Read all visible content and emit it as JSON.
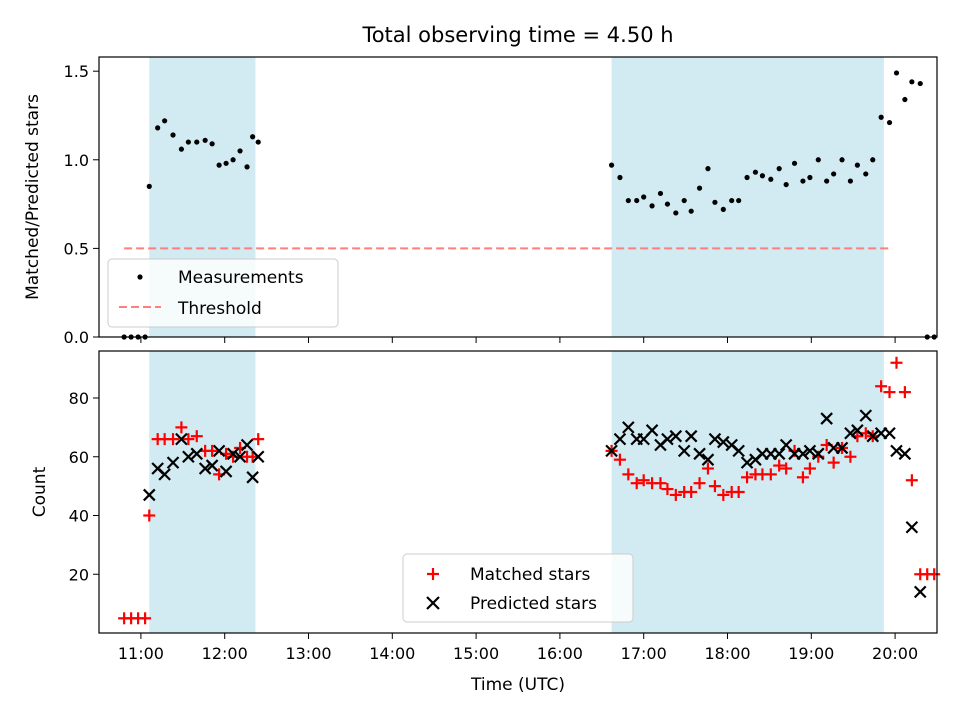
{
  "figure": {
    "title": "Total observing time = 4.50 h"
  },
  "colors": {
    "shade": "#add8e6",
    "measure": "#000000",
    "threshold": "#ff7f7f",
    "matched": "#ff0000",
    "predicted": "#000000"
  },
  "chart_data": [
    {
      "type": "scatter",
      "ylabel": "Matched/Predicted stars",
      "ylim": [
        0,
        1.58
      ],
      "yticks": [
        0.0,
        0.5,
        1.0,
        1.5
      ],
      "ytick_labels": [
        "0.0",
        "0.5",
        "1.0",
        "1.5"
      ],
      "xlim": [
        "10:30",
        "20:30"
      ],
      "shaded_intervals": [
        [
          "11:06",
          "12:22"
        ],
        [
          "16:37",
          "19:52"
        ]
      ],
      "legend_position": "lower-left",
      "threshold": {
        "name": "Threshold",
        "y": 0.5,
        "x_range": [
          "10:48",
          "19:58"
        ],
        "style": "dashed"
      },
      "series": [
        {
          "name": "Measurements",
          "points": [
            [
              "10:48",
              0.0
            ],
            [
              "10:53",
              0.0
            ],
            [
              "10:58",
              0.0
            ],
            [
              "11:03",
              0.0
            ],
            [
              "11:06",
              0.85
            ],
            [
              "11:12",
              1.18
            ],
            [
              "11:17",
              1.22
            ],
            [
              "11:23",
              1.14
            ],
            [
              "11:29",
              1.06
            ],
            [
              "11:34",
              1.1
            ],
            [
              "11:40",
              1.1
            ],
            [
              "11:46",
              1.11
            ],
            [
              "11:51",
              1.09
            ],
            [
              "11:56",
              0.97
            ],
            [
              "12:01",
              0.98
            ],
            [
              "12:06",
              1.0
            ],
            [
              "12:11",
              1.05
            ],
            [
              "12:16",
              0.96
            ],
            [
              "12:20",
              1.13
            ],
            [
              "12:24",
              1.1
            ],
            [
              "16:37",
              0.97
            ],
            [
              "16:43",
              0.9
            ],
            [
              "16:49",
              0.77
            ],
            [
              "16:55",
              0.77
            ],
            [
              "17:00",
              0.79
            ],
            [
              "17:06",
              0.74
            ],
            [
              "17:12",
              0.81
            ],
            [
              "17:17",
              0.75
            ],
            [
              "17:23",
              0.7
            ],
            [
              "17:29",
              0.77
            ],
            [
              "17:34",
              0.71
            ],
            [
              "17:40",
              0.84
            ],
            [
              "17:46",
              0.95
            ],
            [
              "17:51",
              0.76
            ],
            [
              "17:57",
              0.72
            ],
            [
              "18:03",
              0.77
            ],
            [
              "18:08",
              0.77
            ],
            [
              "18:14",
              0.9
            ],
            [
              "18:20",
              0.93
            ],
            [
              "18:25",
              0.91
            ],
            [
              "18:31",
              0.89
            ],
            [
              "18:37",
              0.95
            ],
            [
              "18:42",
              0.86
            ],
            [
              "18:48",
              0.98
            ],
            [
              "18:54",
              0.88
            ],
            [
              "18:59",
              0.9
            ],
            [
              "19:05",
              1.0
            ],
            [
              "19:11",
              0.88
            ],
            [
              "19:16",
              0.92
            ],
            [
              "19:22",
              1.0
            ],
            [
              "19:28",
              0.88
            ],
            [
              "19:33",
              0.97
            ],
            [
              "19:39",
              0.92
            ],
            [
              "19:44",
              1.0
            ],
            [
              "19:50",
              1.24
            ],
            [
              "19:56",
              1.21
            ],
            [
              "20:01",
              1.49
            ],
            [
              "20:07",
              1.34
            ],
            [
              "20:12",
              1.44
            ],
            [
              "20:18",
              1.43
            ],
            [
              "20:23",
              0.0
            ],
            [
              "20:28",
              0.0
            ]
          ]
        }
      ]
    },
    {
      "type": "scatter",
      "xlabel": "Time (UTC)",
      "ylabel": "Count",
      "ylim": [
        0,
        96
      ],
      "yticks": [
        20,
        40,
        60,
        80
      ],
      "ytick_labels": [
        "20",
        "40",
        "60",
        "80"
      ],
      "xlim": [
        "10:30",
        "20:30"
      ],
      "xticks": [
        "11:00",
        "12:00",
        "13:00",
        "14:00",
        "15:00",
        "16:00",
        "17:00",
        "18:00",
        "19:00",
        "20:00"
      ],
      "shaded_intervals": [
        [
          "11:06",
          "12:22"
        ],
        [
          "16:37",
          "19:52"
        ]
      ],
      "legend_position": "lower-center",
      "series": [
        {
          "name": "Matched stars",
          "marker": "plus",
          "points": [
            [
              "10:48",
              5
            ],
            [
              "10:53",
              5
            ],
            [
              "10:58",
              5
            ],
            [
              "11:03",
              5
            ],
            [
              "11:06",
              40
            ],
            [
              "11:12",
              66
            ],
            [
              "11:17",
              66
            ],
            [
              "11:23",
              66
            ],
            [
              "11:29",
              70
            ],
            [
              "11:34",
              66
            ],
            [
              "11:40",
              67
            ],
            [
              "11:46",
              62
            ],
            [
              "11:51",
              62
            ],
            [
              "11:56",
              54
            ],
            [
              "12:01",
              61
            ],
            [
              "12:06",
              60
            ],
            [
              "12:11",
              63
            ],
            [
              "12:16",
              60
            ],
            [
              "12:20",
              60
            ],
            [
              "12:24",
              66
            ],
            [
              "16:37",
              62
            ],
            [
              "16:43",
              59
            ],
            [
              "16:49",
              54
            ],
            [
              "16:55",
              51
            ],
            [
              "17:00",
              52
            ],
            [
              "17:06",
              51
            ],
            [
              "17:12",
              51
            ],
            [
              "17:17",
              49
            ],
            [
              "17:23",
              47
            ],
            [
              "17:29",
              48
            ],
            [
              "17:34",
              48
            ],
            [
              "17:40",
              51
            ],
            [
              "17:46",
              56
            ],
            [
              "17:51",
              50
            ],
            [
              "17:57",
              47
            ],
            [
              "18:03",
              48
            ],
            [
              "18:08",
              48
            ],
            [
              "18:14",
              53
            ],
            [
              "18:20",
              54
            ],
            [
              "18:25",
              54
            ],
            [
              "18:31",
              54
            ],
            [
              "18:37",
              57
            ],
            [
              "18:42",
              56
            ],
            [
              "18:48",
              62
            ],
            [
              "18:54",
              53
            ],
            [
              "18:59",
              56
            ],
            [
              "19:05",
              60
            ],
            [
              "19:11",
              64
            ],
            [
              "19:16",
              58
            ],
            [
              "19:22",
              63
            ],
            [
              "19:28",
              60
            ],
            [
              "19:33",
              67
            ],
            [
              "19:39",
              68
            ],
            [
              "19:44",
              67
            ],
            [
              "19:50",
              84
            ],
            [
              "19:56",
              82
            ],
            [
              "20:01",
              92
            ],
            [
              "20:07",
              82
            ],
            [
              "20:12",
              52
            ],
            [
              "20:18",
              20
            ],
            [
              "20:23",
              20
            ],
            [
              "20:28",
              20
            ]
          ]
        },
        {
          "name": "Predicted stars",
          "marker": "x",
          "points": [
            [
              "11:06",
              47
            ],
            [
              "11:12",
              56
            ],
            [
              "11:17",
              54
            ],
            [
              "11:23",
              58
            ],
            [
              "11:29",
              66
            ],
            [
              "11:34",
              60
            ],
            [
              "11:40",
              61
            ],
            [
              "11:46",
              56
            ],
            [
              "11:51",
              57
            ],
            [
              "11:56",
              62
            ],
            [
              "12:01",
              55
            ],
            [
              "12:06",
              61
            ],
            [
              "12:11",
              60
            ],
            [
              "12:16",
              64
            ],
            [
              "12:20",
              53
            ],
            [
              "12:24",
              60
            ],
            [
              "16:37",
              62
            ],
            [
              "16:43",
              66
            ],
            [
              "16:49",
              70
            ],
            [
              "16:55",
              66
            ],
            [
              "17:00",
              66
            ],
            [
              "17:06",
              69
            ],
            [
              "17:12",
              64
            ],
            [
              "17:17",
              66
            ],
            [
              "17:23",
              67
            ],
            [
              "17:29",
              62
            ],
            [
              "17:34",
              67
            ],
            [
              "17:40",
              61
            ],
            [
              "17:46",
              59
            ],
            [
              "17:51",
              66
            ],
            [
              "17:57",
              65
            ],
            [
              "18:03",
              64
            ],
            [
              "18:08",
              62
            ],
            [
              "18:14",
              58
            ],
            [
              "18:20",
              59
            ],
            [
              "18:25",
              61
            ],
            [
              "18:31",
              61
            ],
            [
              "18:37",
              61
            ],
            [
              "18:42",
              64
            ],
            [
              "18:48",
              61
            ],
            [
              "18:54",
              61
            ],
            [
              "18:59",
              62
            ],
            [
              "19:05",
              61
            ],
            [
              "19:11",
              73
            ],
            [
              "19:16",
              63
            ],
            [
              "19:22",
              63
            ],
            [
              "19:28",
              68
            ],
            [
              "19:33",
              69
            ],
            [
              "19:39",
              74
            ],
            [
              "19:44",
              67
            ],
            [
              "19:50",
              68
            ],
            [
              "19:56",
              68
            ],
            [
              "20:01",
              62
            ],
            [
              "20:07",
              61
            ],
            [
              "20:12",
              36
            ],
            [
              "20:18",
              14
            ]
          ]
        }
      ]
    }
  ]
}
